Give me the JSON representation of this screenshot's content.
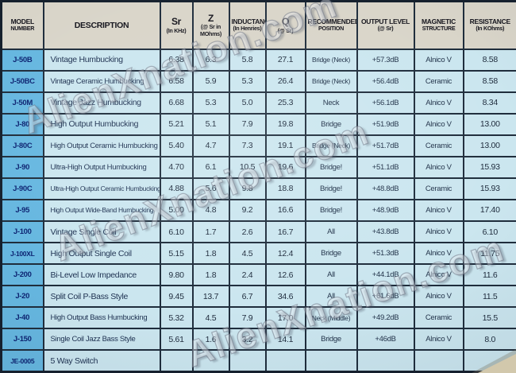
{
  "watermark": {
    "text": "AlienXnation.com"
  },
  "colors": {
    "model_column_bg": "#66b7e0",
    "row_bg": "#cbe6ef",
    "header_bg": "#d9d5c9",
    "border": "#1f2d3c",
    "model_text": "#0d2472",
    "body_text": "#22334a"
  },
  "columns": [
    {
      "id": "model",
      "width": 53,
      "lines": [
        "MODEL",
        "NUMBER"
      ]
    },
    {
      "id": "description",
      "width": 147,
      "lines": [
        "DESCRIPTION"
      ]
    },
    {
      "id": "sr",
      "width": 41,
      "lines": [
        "Sr",
        "(In KHz)"
      ]
    },
    {
      "id": "z",
      "width": 46,
      "lines": [
        "Z",
        "(@ Sr in",
        "MOhms)"
      ]
    },
    {
      "id": "inductance",
      "width": 46,
      "lines": [
        "INDUCTANCE",
        "(In Henries)"
      ]
    },
    {
      "id": "q",
      "width": 50,
      "lines": [
        "Q",
        "(@ Sr)"
      ]
    },
    {
      "id": "position",
      "width": 65,
      "lines": [
        "RECOMMENDED",
        "POSITION"
      ]
    },
    {
      "id": "output",
      "width": 72,
      "lines": [
        "OUTPUT LEVEL",
        "(@ Sr)"
      ]
    },
    {
      "id": "magnetic",
      "width": 62,
      "lines": [
        "MAGNETIC",
        "STRUCTURE"
      ]
    },
    {
      "id": "resistance",
      "width": 68,
      "lines": [
        "RESISTANCE",
        "(In KOhms)"
      ]
    }
  ],
  "rows": [
    {
      "model": "J-50B",
      "description": "Vintage Humbucking",
      "sr": "6.38",
      "z": "6.3",
      "inductance": "5.8",
      "q": "27.1",
      "position": "Bridge (Neck)",
      "output": "+57.3dB",
      "magnetic": "Alnico V",
      "resistance": "8.58"
    },
    {
      "model": "J-50BC",
      "description": "Vintage Ceramic Humbucking",
      "sr": "6.58",
      "z": "5.9",
      "inductance": "5.3",
      "q": "26.4",
      "position": "Bridge (Neck)",
      "output": "+56.4dB",
      "magnetic": "Ceramic",
      "resistance": "8.58"
    },
    {
      "model": "J-50M",
      "description": "Vintage Jazz Humbucking",
      "sr": "6.68",
      "z": "5.3",
      "inductance": "5.0",
      "q": "25.3",
      "position": "Neck",
      "output": "+56.1dB",
      "magnetic": "Alnico V",
      "resistance": "8.34"
    },
    {
      "model": "J-80",
      "description": "High Output Humbucking",
      "sr": "5.21",
      "z": "5.1",
      "inductance": "7.9",
      "q": "19.8",
      "position": "Bridge",
      "output": "+51.9dB",
      "magnetic": "Alnico V",
      "resistance": "13.00"
    },
    {
      "model": "J-80C",
      "description": "High Output Ceramic Humbucking",
      "sr": "5.40",
      "z": "4.7",
      "inductance": "7.3",
      "q": "19.1",
      "position": "Bridge (Neck)",
      "output": "+51.7dB",
      "magnetic": "Ceramic",
      "resistance": "13.00"
    },
    {
      "model": "J-90",
      "description": "Ultra-High Output Humbucking",
      "sr": "4.70",
      "z": "6.1",
      "inductance": "10.5",
      "q": "19.6",
      "position": "Bridge!",
      "output": "+51.1dB",
      "magnetic": "Alnico V",
      "resistance": "15.93"
    },
    {
      "model": "J-90C",
      "description": "Ultra-High Output Ceramic Humbucking",
      "sr": "4.88",
      "z": "5.6",
      "inductance": "9.8",
      "q": "18.8",
      "position": "Bridge!",
      "output": "+48.8dB",
      "magnetic": "Ceramic",
      "resistance": "15.93"
    },
    {
      "model": "J-95",
      "description": "High Output Wide-Band Humbucking",
      "sr": "5.00",
      "z": "4.8",
      "inductance": "9.2",
      "q": "16.6",
      "position": "Bridge!",
      "output": "+48.9dB",
      "magnetic": "Alnico V",
      "resistance": "17.40"
    },
    {
      "model": "J-100",
      "description": "Vintage Single Coil",
      "sr": "6.10",
      "z": "1.7",
      "inductance": "2.6",
      "q": "16.7",
      "position": "All",
      "output": "+43.8dB",
      "magnetic": "Alnico V",
      "resistance": "6.10"
    },
    {
      "model": "J-100XL",
      "description": "High Output Single Coil",
      "sr": "5.15",
      "z": "1.8",
      "inductance": "4.5",
      "q": "12.4",
      "position": "Bridge",
      "output": "+51.3dB",
      "magnetic": "Alnico V",
      "resistance": "11.75"
    },
    {
      "model": "J-200",
      "description": "Bi-Level Low Impedance",
      "sr": "9.80",
      "z": "1.8",
      "inductance": "2.4",
      "q": "12.6",
      "position": "All",
      "output": "+44.1dB",
      "magnetic": "Alnico V",
      "resistance": "11.6"
    },
    {
      "model": "J-20",
      "description": "Split Coil P-Bass Style",
      "sr": "9.45",
      "z": "13.7",
      "inductance": "6.7",
      "q": "34.6",
      "position": "All",
      "output": "+61.6dB",
      "magnetic": "Alnico V",
      "resistance": "11.5"
    },
    {
      "model": "J-40",
      "description": "High Output Bass Humbucking",
      "sr": "5.32",
      "z": "4.5",
      "inductance": "7.9",
      "q": "17.0",
      "position": "Neck (Middle)",
      "output": "+49.2dB",
      "magnetic": "Ceramic",
      "resistance": "15.5"
    },
    {
      "model": "J-150",
      "description": "Single Coil Jazz Bass Style",
      "sr": "5.61",
      "z": "1.6",
      "inductance": "3.2",
      "q": "14.1",
      "position": "Bridge",
      "output": "+46dB",
      "magnetic": "Alnico V",
      "resistance": "8.0"
    },
    {
      "model": "JE-0005",
      "description": "5 Way Switch",
      "sr": "",
      "z": "",
      "inductance": "",
      "q": "",
      "position": "",
      "output": "",
      "magnetic": "",
      "resistance": ""
    }
  ]
}
